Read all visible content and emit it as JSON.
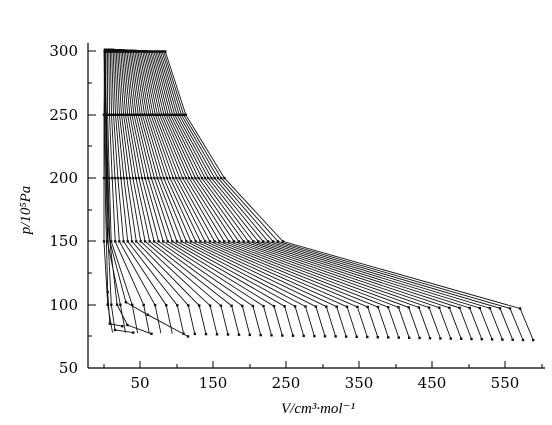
{
  "chart_data": {
    "type": "line",
    "xlabel": "V/cm³·mol⁻¹",
    "ylabel": "p/10⁵Pa",
    "xlim": [
      20,
      610
    ],
    "ylim": [
      50,
      310
    ],
    "x_ticks": [
      "50",
      "150",
      "250",
      "350",
      "450",
      "550"
    ],
    "y_ticks": [
      "50",
      "100",
      "150",
      "200",
      "250",
      "300"
    ],
    "grid": false,
    "legend": "none",
    "series_count": 40,
    "series_summary": {
      "left_start_volume_range": [
        30,
        31
      ],
      "p300_volume_range": [
        31,
        114
      ],
      "p250_volume_range": [
        30,
        142
      ],
      "p200_volume_range": [
        30,
        195
      ],
      "p150_volume_range": [
        30,
        275
      ],
      "p100_volume_range": [
        35,
        600
      ],
      "end_pressure_range": [
        72,
        78
      ]
    }
  },
  "style": {
    "line_color": "#111111",
    "marker_color": "#111111",
    "background": "#ffffff"
  }
}
